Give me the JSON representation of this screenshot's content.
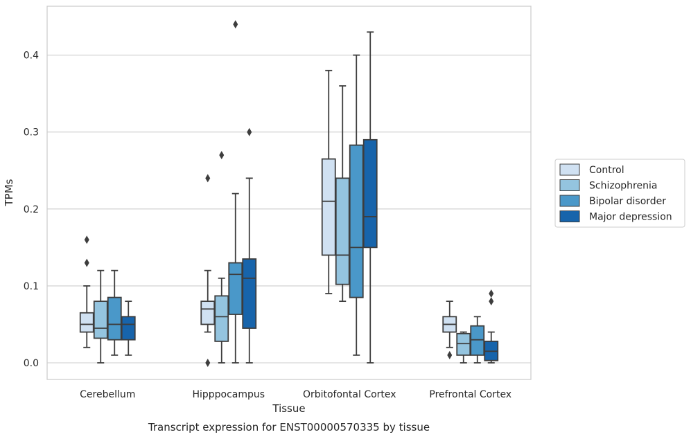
{
  "chart_data": {
    "type": "box",
    "title": "",
    "caption": "Transcript expression for ENST00000570335 by tissue",
    "xlabel": "Tissue",
    "ylabel": "TPMs",
    "ylim": [
      -0.022,
      0.465
    ],
    "yticks": [
      0.0,
      0.1,
      0.2,
      0.3,
      0.4
    ],
    "ytick_labels": [
      "0.0",
      "0.1",
      "0.2",
      "0.3",
      "0.4"
    ],
    "grid": "horizontal",
    "legend_position": "right",
    "categories": [
      "Cerebellum",
      "Hipppocampus",
      "Orbitofontal Cortex",
      "Prefrontal Cortex"
    ],
    "series": [
      {
        "name": "Control",
        "color": "#d0e1f2",
        "boxes": [
          {
            "whisker_low": 0.02,
            "q1": 0.04,
            "median": 0.05,
            "q3": 0.065,
            "whisker_high": 0.1,
            "outliers": [
              0.13,
              0.16
            ]
          },
          {
            "whisker_low": 0.04,
            "q1": 0.05,
            "median": 0.07,
            "q3": 0.08,
            "whisker_high": 0.12,
            "outliers": [
              0.0,
              0.24
            ]
          },
          {
            "whisker_low": 0.09,
            "q1": 0.14,
            "median": 0.21,
            "q3": 0.265,
            "whisker_high": 0.38,
            "outliers": []
          },
          {
            "whisker_low": 0.02,
            "q1": 0.04,
            "median": 0.05,
            "q3": 0.06,
            "whisker_high": 0.08,
            "outliers": [
              0.01
            ]
          }
        ]
      },
      {
        "name": "Schizophrenia",
        "color": "#94c4df",
        "boxes": [
          {
            "whisker_low": 0.0,
            "q1": 0.032,
            "median": 0.045,
            "q3": 0.08,
            "whisker_high": 0.12,
            "outliers": []
          },
          {
            "whisker_low": 0.0,
            "q1": 0.028,
            "median": 0.06,
            "q3": 0.087,
            "whisker_high": 0.11,
            "outliers": [
              0.27
            ]
          },
          {
            "whisker_low": 0.08,
            "q1": 0.102,
            "median": 0.14,
            "q3": 0.24,
            "whisker_high": 0.36,
            "outliers": []
          },
          {
            "whisker_low": 0.0,
            "q1": 0.01,
            "median": 0.025,
            "q3": 0.038,
            "whisker_high": 0.04,
            "outliers": []
          }
        ]
      },
      {
        "name": "Bipolar disorder",
        "color": "#4a98c9",
        "boxes": [
          {
            "whisker_low": 0.01,
            "q1": 0.03,
            "median": 0.05,
            "q3": 0.085,
            "whisker_high": 0.12,
            "outliers": []
          },
          {
            "whisker_low": 0.0,
            "q1": 0.063,
            "median": 0.115,
            "q3": 0.13,
            "whisker_high": 0.22,
            "outliers": [
              0.44
            ]
          },
          {
            "whisker_low": 0.01,
            "q1": 0.085,
            "median": 0.15,
            "q3": 0.283,
            "whisker_high": 0.4,
            "outliers": []
          },
          {
            "whisker_low": 0.0,
            "q1": 0.01,
            "median": 0.03,
            "q3": 0.048,
            "whisker_high": 0.06,
            "outliers": []
          }
        ]
      },
      {
        "name": "Major depression",
        "color": "#1764ab",
        "boxes": [
          {
            "whisker_low": 0.01,
            "q1": 0.03,
            "median": 0.05,
            "q3": 0.06,
            "whisker_high": 0.08,
            "outliers": []
          },
          {
            "whisker_low": 0.0,
            "q1": 0.045,
            "median": 0.11,
            "q3": 0.135,
            "whisker_high": 0.24,
            "outliers": [
              0.3
            ]
          },
          {
            "whisker_low": 0.0,
            "q1": 0.15,
            "median": 0.19,
            "q3": 0.29,
            "whisker_high": 0.43,
            "outliers": []
          },
          {
            "whisker_low": 0.0,
            "q1": 0.003,
            "median": 0.015,
            "q3": 0.028,
            "whisker_high": 0.04,
            "outliers": [
              0.08,
              0.09
            ]
          }
        ]
      }
    ]
  }
}
